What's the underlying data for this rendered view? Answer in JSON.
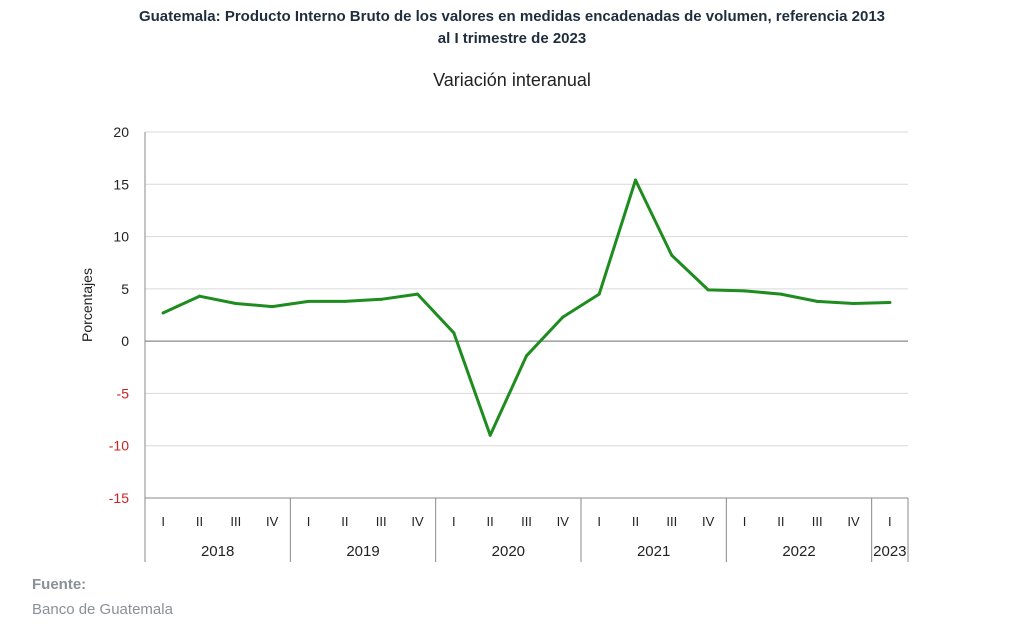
{
  "header": {
    "title_line1": "Guatemala: Producto Interno Bruto de los valores en medidas encadenadas  de volumen, referencia 2013",
    "title_line2": "al I trimestre de 2023",
    "subtitle": "Variación interanual"
  },
  "footer": {
    "source_label": "Fuente:",
    "source_value": "Banco de Guatemala"
  },
  "colors": {
    "line": "#1f8c1f",
    "negative_tick": "#cc2222",
    "grid": "#d9d9d9",
    "axis": "#888888"
  },
  "chart_data": {
    "type": "line",
    "title": "Guatemala: Producto Interno Bruto de los valores en medidas encadenadas  de volumen, referencia 2013 al I trimestre de 2023",
    "subtitle": "Variación interanual",
    "ylabel": "Porcentajes",
    "xlabel": "",
    "ylim": [
      -15,
      20
    ],
    "yticks": [
      20,
      15,
      10,
      5,
      0,
      -5,
      -10,
      -15
    ],
    "grid": true,
    "categories": [
      "I",
      "II",
      "III",
      "IV",
      "I",
      "II",
      "III",
      "IV",
      "I",
      "II",
      "III",
      "IV",
      "I",
      "II",
      "III",
      "IV",
      "I",
      "II",
      "III",
      "IV",
      "I"
    ],
    "years": [
      {
        "label": "2018",
        "quarters": 4
      },
      {
        "label": "2019",
        "quarters": 4
      },
      {
        "label": "2020",
        "quarters": 4
      },
      {
        "label": "2021",
        "quarters": 4
      },
      {
        "label": "2022",
        "quarters": 4
      },
      {
        "label": "2023",
        "quarters": 1
      }
    ],
    "series": [
      {
        "values": [
          2.7,
          4.3,
          3.6,
          3.3,
          3.8,
          3.8,
          4.0,
          4.5,
          0.8,
          -9.0,
          -1.4,
          2.3,
          4.5,
          15.4,
          8.2,
          4.9,
          4.8,
          4.5,
          3.8,
          3.6,
          3.7
        ]
      }
    ]
  }
}
